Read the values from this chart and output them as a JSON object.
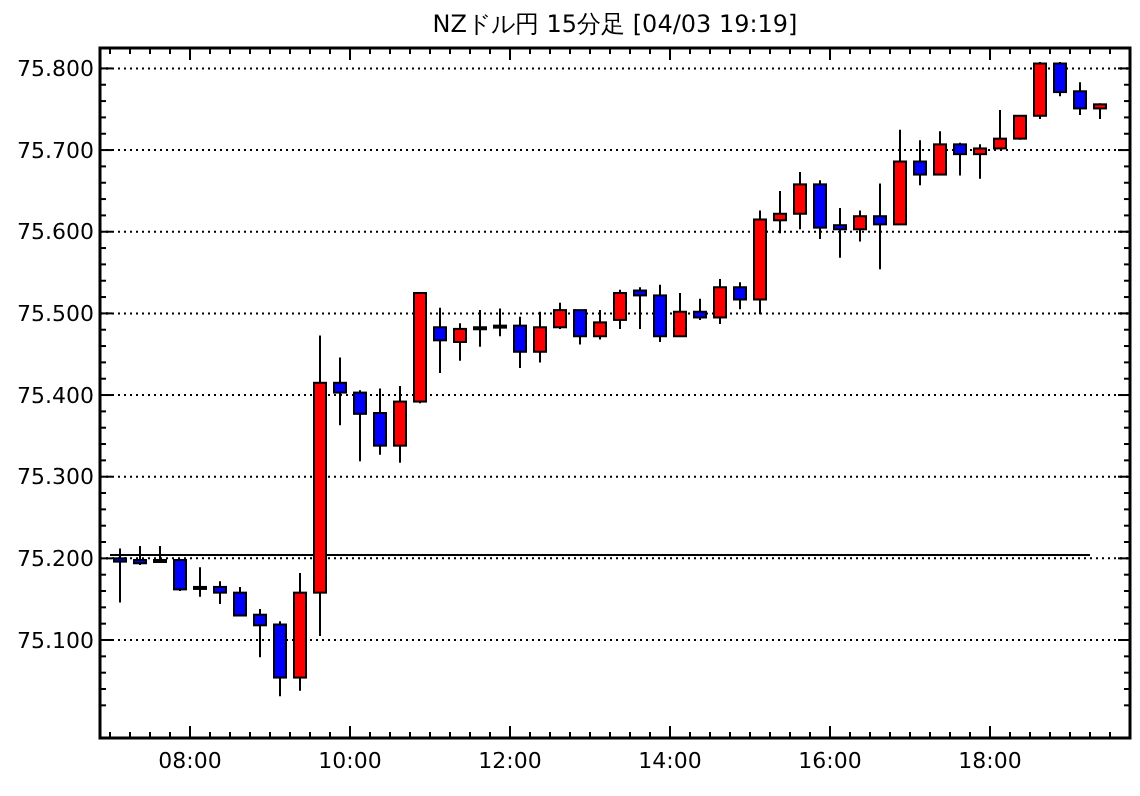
{
  "chart_data": {
    "type": "candlestick",
    "title": "NZドル円 15分足 [04/03 19:19]",
    "x": [
      7.125,
      7.375,
      7.625,
      7.875,
      8.125,
      8.375,
      8.625,
      8.875,
      9.125,
      9.375,
      9.625,
      9.875,
      10.125,
      10.375,
      10.625,
      10.875,
      11.125,
      11.375,
      11.625,
      11.875,
      12.125,
      12.375,
      12.625,
      12.875,
      13.125,
      13.375,
      13.625,
      13.875,
      14.125,
      14.375,
      14.625,
      14.875,
      15.125,
      15.375,
      15.625,
      15.875,
      16.125,
      16.375,
      16.625,
      16.875,
      17.125,
      17.375,
      17.625,
      17.875,
      18.125,
      18.375,
      18.625,
      18.875,
      19.125,
      19.375
    ],
    "ohlc": [
      [
        75.2,
        75.212,
        75.146,
        75.196
      ],
      [
        75.198,
        75.215,
        75.192,
        75.194
      ],
      [
        75.198,
        75.215,
        75.195,
        75.197
      ],
      [
        75.198,
        75.198,
        75.16,
        75.162
      ],
      [
        75.165,
        75.189,
        75.153,
        75.164
      ],
      [
        75.165,
        75.172,
        75.144,
        75.158
      ],
      [
        75.158,
        75.165,
        75.13,
        75.13
      ],
      [
        75.131,
        75.138,
        75.079,
        75.118
      ],
      [
        75.119,
        75.123,
        75.031,
        75.054
      ],
      [
        75.054,
        75.182,
        75.038,
        75.158
      ],
      [
        75.158,
        75.473,
        75.105,
        75.415
      ],
      [
        75.415,
        75.446,
        75.363,
        75.403
      ],
      [
        75.403,
        75.406,
        75.319,
        75.377
      ],
      [
        75.378,
        75.408,
        75.327,
        75.338
      ],
      [
        75.338,
        75.411,
        75.317,
        75.392
      ],
      [
        75.392,
        75.525,
        75.39,
        75.525
      ],
      [
        75.483,
        75.507,
        75.427,
        75.467
      ],
      [
        75.465,
        75.488,
        75.442,
        75.481
      ],
      [
        75.483,
        75.504,
        75.459,
        75.481
      ],
      [
        75.484,
        75.506,
        75.472,
        75.485
      ],
      [
        75.485,
        75.496,
        75.433,
        75.453
      ],
      [
        75.453,
        75.502,
        75.44,
        75.483
      ],
      [
        75.483,
        75.513,
        75.481,
        75.504
      ],
      [
        75.504,
        75.504,
        75.462,
        75.472
      ],
      [
        75.472,
        75.504,
        75.468,
        75.489
      ],
      [
        75.492,
        75.529,
        75.481,
        75.525
      ],
      [
        75.528,
        75.532,
        75.481,
        75.522
      ],
      [
        75.522,
        75.535,
        75.465,
        75.472
      ],
      [
        75.472,
        75.525,
        75.472,
        75.502
      ],
      [
        75.502,
        75.518,
        75.492,
        75.495
      ],
      [
        75.495,
        75.542,
        75.487,
        75.532
      ],
      [
        75.532,
        75.538,
        75.505,
        75.517
      ],
      [
        75.517,
        75.626,
        75.499,
        75.615
      ],
      [
        75.614,
        75.65,
        75.598,
        75.622
      ],
      [
        75.622,
        75.673,
        75.603,
        75.658
      ],
      [
        75.658,
        75.663,
        75.591,
        75.605
      ],
      [
        75.608,
        75.629,
        75.568,
        75.603
      ],
      [
        75.603,
        75.626,
        75.588,
        75.619
      ],
      [
        75.619,
        75.659,
        75.554,
        75.609
      ],
      [
        75.609,
        75.725,
        75.609,
        75.686
      ],
      [
        75.686,
        75.712,
        75.657,
        75.67
      ],
      [
        75.67,
        75.723,
        75.67,
        75.707
      ],
      [
        75.707,
        75.709,
        75.669,
        75.695
      ],
      [
        75.695,
        75.707,
        75.665,
        75.702
      ],
      [
        75.702,
        75.749,
        75.702,
        75.714
      ],
      [
        75.714,
        75.743,
        75.713,
        75.742
      ],
      [
        75.742,
        75.808,
        75.738,
        75.806
      ],
      [
        75.806,
        75.808,
        75.766,
        75.771
      ],
      [
        75.772,
        75.783,
        75.743,
        75.751
      ],
      [
        75.751,
        75.757,
        75.738,
        75.756
      ]
    ],
    "colors": [
      "#0000ff",
      "#0000ff",
      "#0000ff",
      "#0000ff",
      "#0000ff",
      "#0000ff",
      "#0000ff",
      "#0000ff",
      "#0000ff",
      "#ff0000",
      "#ff0000",
      "#0000ff",
      "#0000ff",
      "#0000ff",
      "#ff0000",
      "#ff0000",
      "#0000ff",
      "#ff0000",
      "#0000ff",
      "#ff0000",
      "#0000ff",
      "#ff0000",
      "#ff0000",
      "#0000ff",
      "#ff0000",
      "#ff0000",
      "#0000ff",
      "#0000ff",
      "#ff0000",
      "#0000ff",
      "#ff0000",
      "#0000ff",
      "#ff0000",
      "#ff0000",
      "#ff0000",
      "#0000ff",
      "#0000ff",
      "#ff0000",
      "#0000ff",
      "#ff0000",
      "#0000ff",
      "#ff0000",
      "#0000ff",
      "#ff0000",
      "#ff0000",
      "#ff0000",
      "#ff0000",
      "#0000ff",
      "#0000ff",
      "#ff0000"
    ],
    "xlim": [
      6.875,
      19.75
    ],
    "xticks": [
      {
        "value": 7,
        "label": null
      },
      {
        "value": 7.25,
        "label": null
      },
      {
        "value": 7.5,
        "label": null
      },
      {
        "value": 7.75,
        "label": null
      },
      {
        "value": 8,
        "label": "08:00"
      },
      {
        "value": 8.25,
        "label": null
      },
      {
        "value": 8.5,
        "label": null
      },
      {
        "value": 8.75,
        "label": null
      },
      {
        "value": 9,
        "label": null
      },
      {
        "value": 9.25,
        "label": null
      },
      {
        "value": 9.5,
        "label": null
      },
      {
        "value": 9.75,
        "label": null
      },
      {
        "value": 10,
        "label": "10:00"
      },
      {
        "value": 10.25,
        "label": null
      },
      {
        "value": 10.5,
        "label": null
      },
      {
        "value": 10.75,
        "label": null
      },
      {
        "value": 11,
        "label": null
      },
      {
        "value": 11.25,
        "label": null
      },
      {
        "value": 11.5,
        "label": null
      },
      {
        "value": 11.75,
        "label": null
      },
      {
        "value": 12,
        "label": "12:00"
      },
      {
        "value": 12.25,
        "label": null
      },
      {
        "value": 12.5,
        "label": null
      },
      {
        "value": 12.75,
        "label": null
      },
      {
        "value": 13,
        "label": null
      },
      {
        "value": 13.25,
        "label": null
      },
      {
        "value": 13.5,
        "label": null
      },
      {
        "value": 13.75,
        "label": null
      },
      {
        "value": 14,
        "label": "14:00"
      },
      {
        "value": 14.25,
        "label": null
      },
      {
        "value": 14.5,
        "label": null
      },
      {
        "value": 14.75,
        "label": null
      },
      {
        "value": 15,
        "label": null
      },
      {
        "value": 15.25,
        "label": null
      },
      {
        "value": 15.5,
        "label": null
      },
      {
        "value": 15.75,
        "label": null
      },
      {
        "value": 16,
        "label": "16:00"
      },
      {
        "value": 16.25,
        "label": null
      },
      {
        "value": 16.5,
        "label": null
      },
      {
        "value": 16.75,
        "label": null
      },
      {
        "value": 17,
        "label": null
      },
      {
        "value": 17.25,
        "label": null
      },
      {
        "value": 17.5,
        "label": null
      },
      {
        "value": 17.75,
        "label": null
      },
      {
        "value": 18,
        "label": "18:00"
      },
      {
        "value": 18.25,
        "label": null
      },
      {
        "value": 18.5,
        "label": null
      },
      {
        "value": 18.75,
        "label": null
      },
      {
        "value": 19,
        "label": null
      },
      {
        "value": 19.25,
        "label": null
      },
      {
        "value": 19.5,
        "label": null
      }
    ],
    "ylim": [
      74.98,
      75.825
    ],
    "yticks": [
      {
        "value": 75.02,
        "label": null
      },
      {
        "value": 75.04,
        "label": null
      },
      {
        "value": 75.06,
        "label": null
      },
      {
        "value": 75.08,
        "label": null
      },
      {
        "value": 75.1,
        "label": "75.100"
      },
      {
        "value": 75.12,
        "label": null
      },
      {
        "value": 75.14,
        "label": null
      },
      {
        "value": 75.16,
        "label": null
      },
      {
        "value": 75.18,
        "label": null
      },
      {
        "value": 75.2,
        "label": "75.200"
      },
      {
        "value": 75.22,
        "label": null
      },
      {
        "value": 75.24,
        "label": null
      },
      {
        "value": 75.26,
        "label": null
      },
      {
        "value": 75.28,
        "label": null
      },
      {
        "value": 75.3,
        "label": "75.300"
      },
      {
        "value": 75.32,
        "label": null
      },
      {
        "value": 75.34,
        "label": null
      },
      {
        "value": 75.36,
        "label": null
      },
      {
        "value": 75.38,
        "label": null
      },
      {
        "value": 75.4,
        "label": "75.400"
      },
      {
        "value": 75.42,
        "label": null
      },
      {
        "value": 75.44,
        "label": null
      },
      {
        "value": 75.46,
        "label": null
      },
      {
        "value": 75.48,
        "label": null
      },
      {
        "value": 75.5,
        "label": "75.500"
      },
      {
        "value": 75.52,
        "label": null
      },
      {
        "value": 75.54,
        "label": null
      },
      {
        "value": 75.56,
        "label": null
      },
      {
        "value": 75.58,
        "label": null
      },
      {
        "value": 75.6,
        "label": "75.600"
      },
      {
        "value": 75.62,
        "label": null
      },
      {
        "value": 75.64,
        "label": null
      },
      {
        "value": 75.66,
        "label": null
      },
      {
        "value": 75.68,
        "label": null
      },
      {
        "value": 75.7,
        "label": "75.700"
      },
      {
        "value": 75.72,
        "label": null
      },
      {
        "value": 75.74,
        "label": null
      },
      {
        "value": 75.76,
        "label": null
      },
      {
        "value": 75.78,
        "label": null
      },
      {
        "value": 75.8,
        "label": "75.800"
      }
    ],
    "grid": "y",
    "ref_lines": [
      {
        "axis": "y",
        "value": 75.204,
        "color": "#000000"
      }
    ]
  }
}
